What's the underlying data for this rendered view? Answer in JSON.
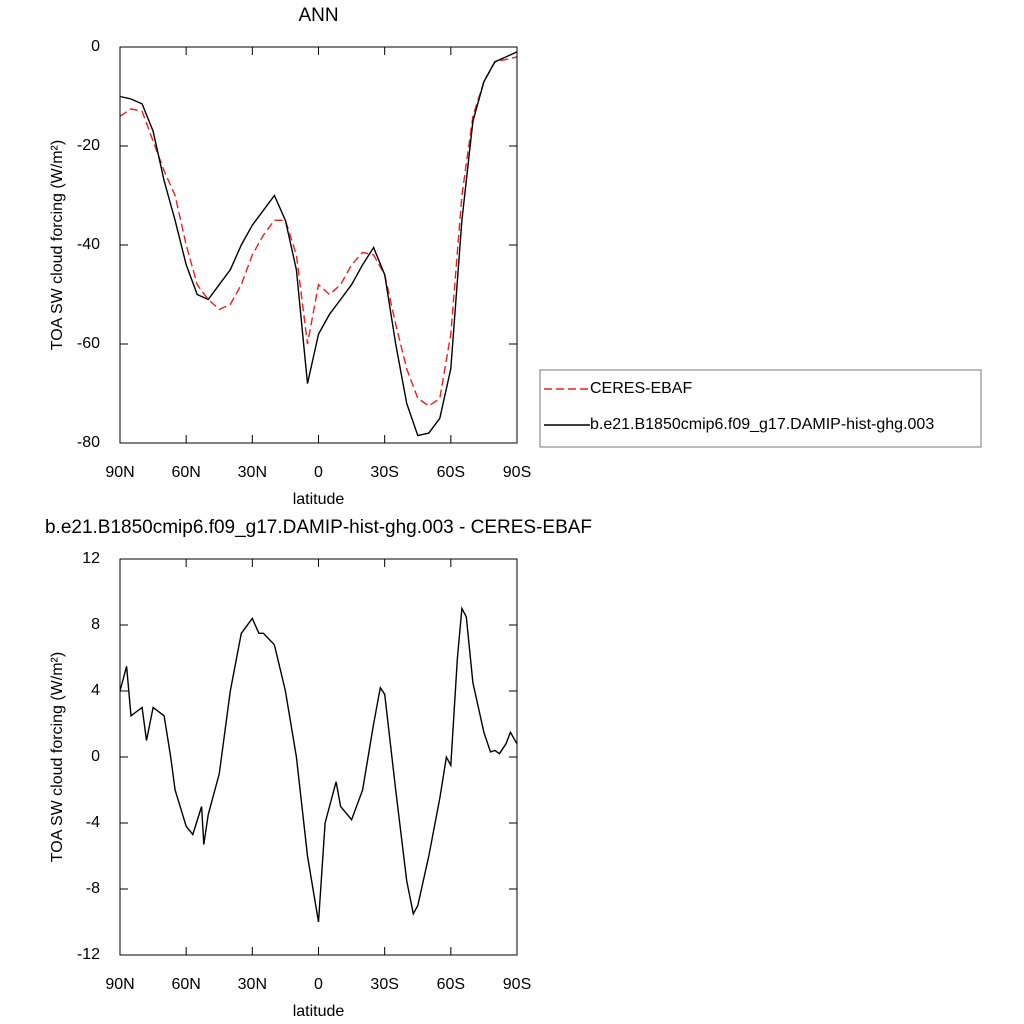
{
  "chart_data": [
    {
      "type": "line",
      "title": "ANN",
      "xlabel": "latitude",
      "ylabel": "TOA SW cloud forcing (W/m²)",
      "x": [
        90,
        85,
        80,
        75,
        70,
        65,
        60,
        55,
        50,
        45,
        40,
        35,
        30,
        25,
        20,
        15,
        10,
        5,
        0,
        -5,
        -10,
        -15,
        -20,
        -25,
        -30,
        -35,
        -40,
        -45,
        -50,
        -55,
        -60,
        -65,
        -70,
        -75,
        -80,
        -85,
        -90
      ],
      "series": [
        {
          "name": "CERES-EBAF",
          "color": "#e8211e",
          "dash": true,
          "values": [
            -14,
            -12.5,
            -13,
            -19,
            -25,
            -30,
            -40,
            -48,
            -51,
            -53,
            -52,
            -48,
            -42,
            -38,
            -35,
            -35,
            -42,
            -60,
            -48,
            -50,
            -48,
            -44,
            -41.5,
            -42,
            -46,
            -56,
            -65,
            -71,
            -72.5,
            -71,
            -58,
            -30,
            -14,
            -7,
            -3,
            -2.5,
            -2
          ]
        },
        {
          "name": "b.e21.B1850cmip6.f09_g17.DAMIP-hist-ghg.003",
          "color": "#000000",
          "dash": false,
          "values": [
            -10,
            -10.5,
            -11.5,
            -17,
            -27,
            -35,
            -44,
            -50,
            -51,
            -48,
            -45,
            -40,
            -36,
            -33,
            -30,
            -35,
            -45,
            -68,
            -58,
            -54,
            -51,
            -48,
            -44,
            -40.5,
            -46,
            -60,
            -72,
            -78.5,
            -78,
            -75,
            -65,
            -35,
            -15,
            -7,
            -3,
            -2,
            -1
          ]
        }
      ],
      "xlim": [
        90,
        -90
      ],
      "xticks": [
        {
          "value": 90,
          "label": "90N"
        },
        {
          "value": 60,
          "label": "60N"
        },
        {
          "value": 30,
          "label": "30N"
        },
        0,
        {
          "value": -30,
          "label": "30S"
        },
        {
          "value": -60,
          "label": "60S"
        },
        {
          "value": -90,
          "label": "90S"
        }
      ],
      "ylim": [
        -80,
        0
      ],
      "yticks": [
        -80,
        -60,
        -40,
        -20,
        0
      ],
      "legend": "right"
    },
    {
      "type": "line",
      "title": "b.e21.B1850cmip6.f09_g17.DAMIP-hist-ghg.003 - CERES-EBAF",
      "xlabel": "latitude",
      "ylabel": "TOA SW cloud forcing (W/m²)",
      "x": [
        90,
        87,
        85,
        80,
        78,
        75,
        70,
        67,
        65,
        60,
        57,
        53,
        52,
        50,
        45,
        40,
        35,
        30,
        27,
        25,
        20,
        15,
        10,
        5,
        0,
        -3,
        -5,
        -8,
        -10,
        -15,
        -20,
        -25,
        -28,
        -30,
        -35,
        -40,
        -43,
        -45,
        -50,
        -55,
        -58,
        -60,
        -63,
        -65,
        -67,
        -70,
        -75,
        -78,
        -80,
        -82,
        -85,
        -87,
        -90
      ],
      "values": [
        4,
        5.5,
        2.5,
        3,
        1,
        3,
        2.5,
        0,
        -2,
        -4.2,
        -4.7,
        -3,
        -5.3,
        -3.5,
        -1,
        4,
        7.5,
        8.4,
        7.5,
        7.5,
        6.8,
        4,
        0,
        -6,
        -10,
        -4,
        -3,
        -1.5,
        -3,
        -3.8,
        -2,
        2,
        4.2,
        3.8,
        -2,
        -7.5,
        -9.5,
        -9,
        -6,
        -2.5,
        0,
        -0.5,
        6,
        9,
        8.5,
        4.5,
        1.5,
        0.3,
        0.4,
        0.2,
        0.8,
        1.5,
        0.8
      ],
      "color": "#000000",
      "xlim": [
        90,
        -90
      ],
      "xticks": [
        {
          "value": 90,
          "label": "90N"
        },
        {
          "value": 60,
          "label": "60N"
        },
        {
          "value": 30,
          "label": "30N"
        },
        0,
        {
          "value": -30,
          "label": "30S"
        },
        {
          "value": -60,
          "label": "60S"
        },
        {
          "value": -90,
          "label": "90S"
        }
      ],
      "ylim": [
        -12,
        12
      ],
      "yticks": [
        -12,
        -8,
        -4,
        0,
        4,
        8,
        12
      ]
    }
  ]
}
